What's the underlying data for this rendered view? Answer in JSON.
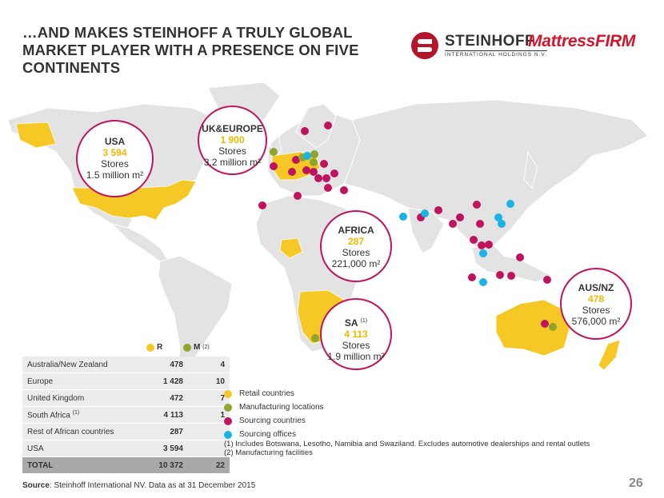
{
  "title": "…AND MAKES STEINHOFF A TRULY GLOBAL MARKET PLAYER WITH A PRESENCE ON FIVE CONTINENTS",
  "logos": {
    "steinhoff_name": "STEINHOFF",
    "steinhoff_sub": "INTERNATIONAL HOLDINGS N.V.",
    "mattress": "MattressFIRM"
  },
  "colors": {
    "retail": "#f5c826",
    "manufacturing": "#8fa52b",
    "sourcing": "#c0135e",
    "sourcing_offices": "#1ab3e6"
  },
  "regions": {
    "usa": {
      "name": "USA",
      "count": "3 594",
      "stores": "Stores",
      "area": "1.5 million m²"
    },
    "uk": {
      "name": "UK&EUROPE",
      "count": "1 900",
      "stores": "Stores",
      "area": "3.2 million m²"
    },
    "africa": {
      "name": "AFRICA",
      "count": "287",
      "stores": "Stores",
      "area": "221,000 m²"
    },
    "sa": {
      "name": "SA",
      "note": "(1)",
      "count": "4 113",
      "stores": "Stores",
      "area": "1.9 million m²"
    },
    "aus": {
      "name": "AUS/NZ",
      "count": "478",
      "stores": "Stores",
      "area": "576,000 m²"
    }
  },
  "table": {
    "header_r": "R",
    "header_m": "M",
    "header_m_note": "(2)",
    "rows": [
      {
        "label": "Australia/New Zealand",
        "note": "",
        "r": "478",
        "m": "4"
      },
      {
        "label": "Europe",
        "note": "",
        "r": "1 428",
        "m": "10"
      },
      {
        "label": "United Kingdom",
        "note": "",
        "r": "472",
        "m": "7"
      },
      {
        "label": "South Africa",
        "note": "(1)",
        "r": "4 113",
        "m": "1"
      },
      {
        "label": "Rest of African countries",
        "note": "",
        "r": "287",
        "m": ""
      },
      {
        "label": "USA",
        "note": "",
        "r": "3 594",
        "m": ""
      }
    ],
    "total": {
      "label": "TOTAL",
      "r": "10 372",
      "m": "22"
    }
  },
  "legend": {
    "retail": "Retail countries",
    "manufacturing": "Manufacturing locations",
    "sourcing": "Sourcing countries",
    "sourcing_offices": "Sourcing offices"
  },
  "notes": {
    "n1": "(1)   Includes Botswana, Lesotho, Namibia and Swaziland. Excludes automotive dealerships and rental outlets",
    "n2": "(2)   Manufacturing facilities"
  },
  "source": {
    "label": "Source",
    "text": ": Steinhoff International NV. Data as at 31 December 2015"
  },
  "page_number": "26"
}
